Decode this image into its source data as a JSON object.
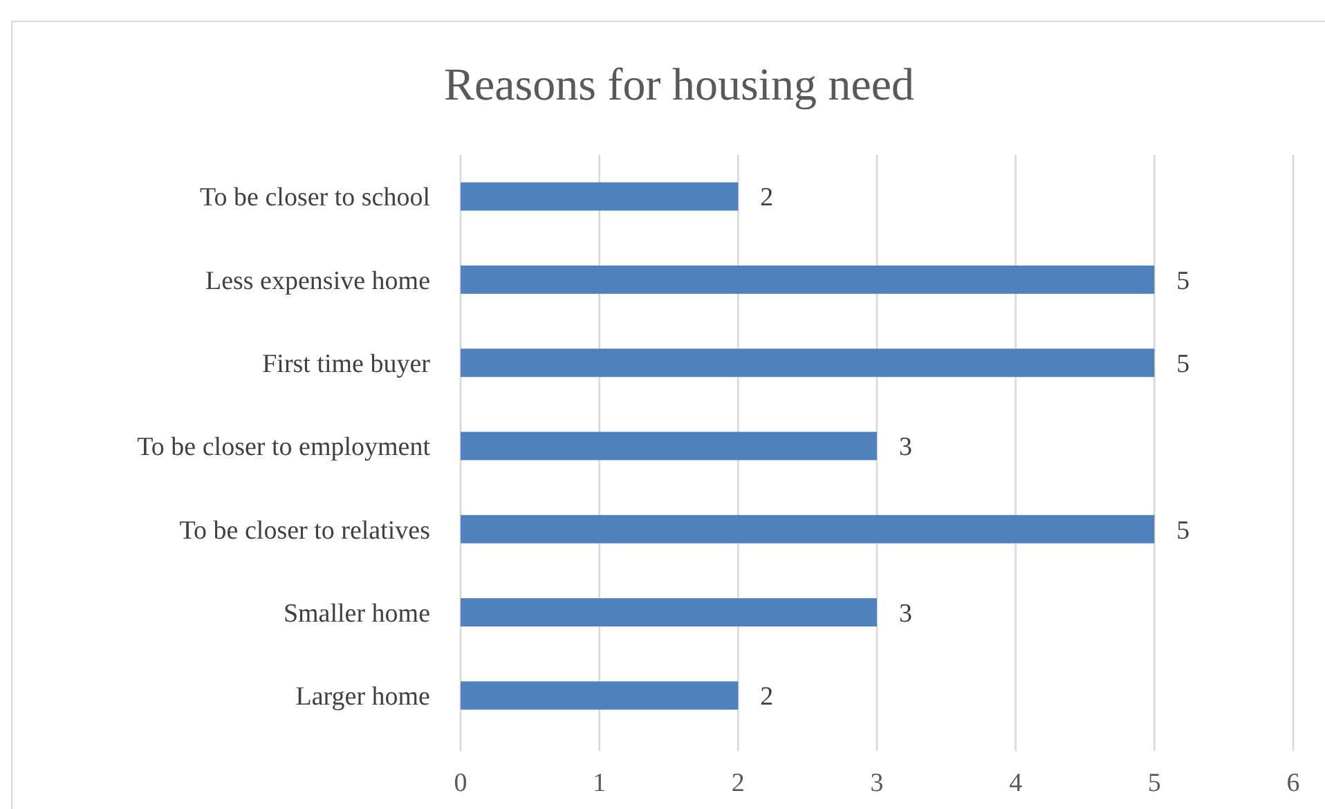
{
  "chart_data": {
    "type": "bar",
    "orientation": "horizontal",
    "title": "Reasons for housing need",
    "categories": [
      "To be closer to school",
      "Less expensive home",
      "First time buyer",
      "To be closer to employment",
      "To be closer to relatives",
      "Smaller home",
      "Larger home"
    ],
    "values": [
      2,
      5,
      5,
      3,
      5,
      3,
      2
    ],
    "color": "#4f81bd",
    "xlim": [
      0,
      6
    ],
    "xticks": [
      0,
      1,
      2,
      3,
      4,
      5,
      6
    ],
    "grid": "x",
    "data_labels": true
  }
}
